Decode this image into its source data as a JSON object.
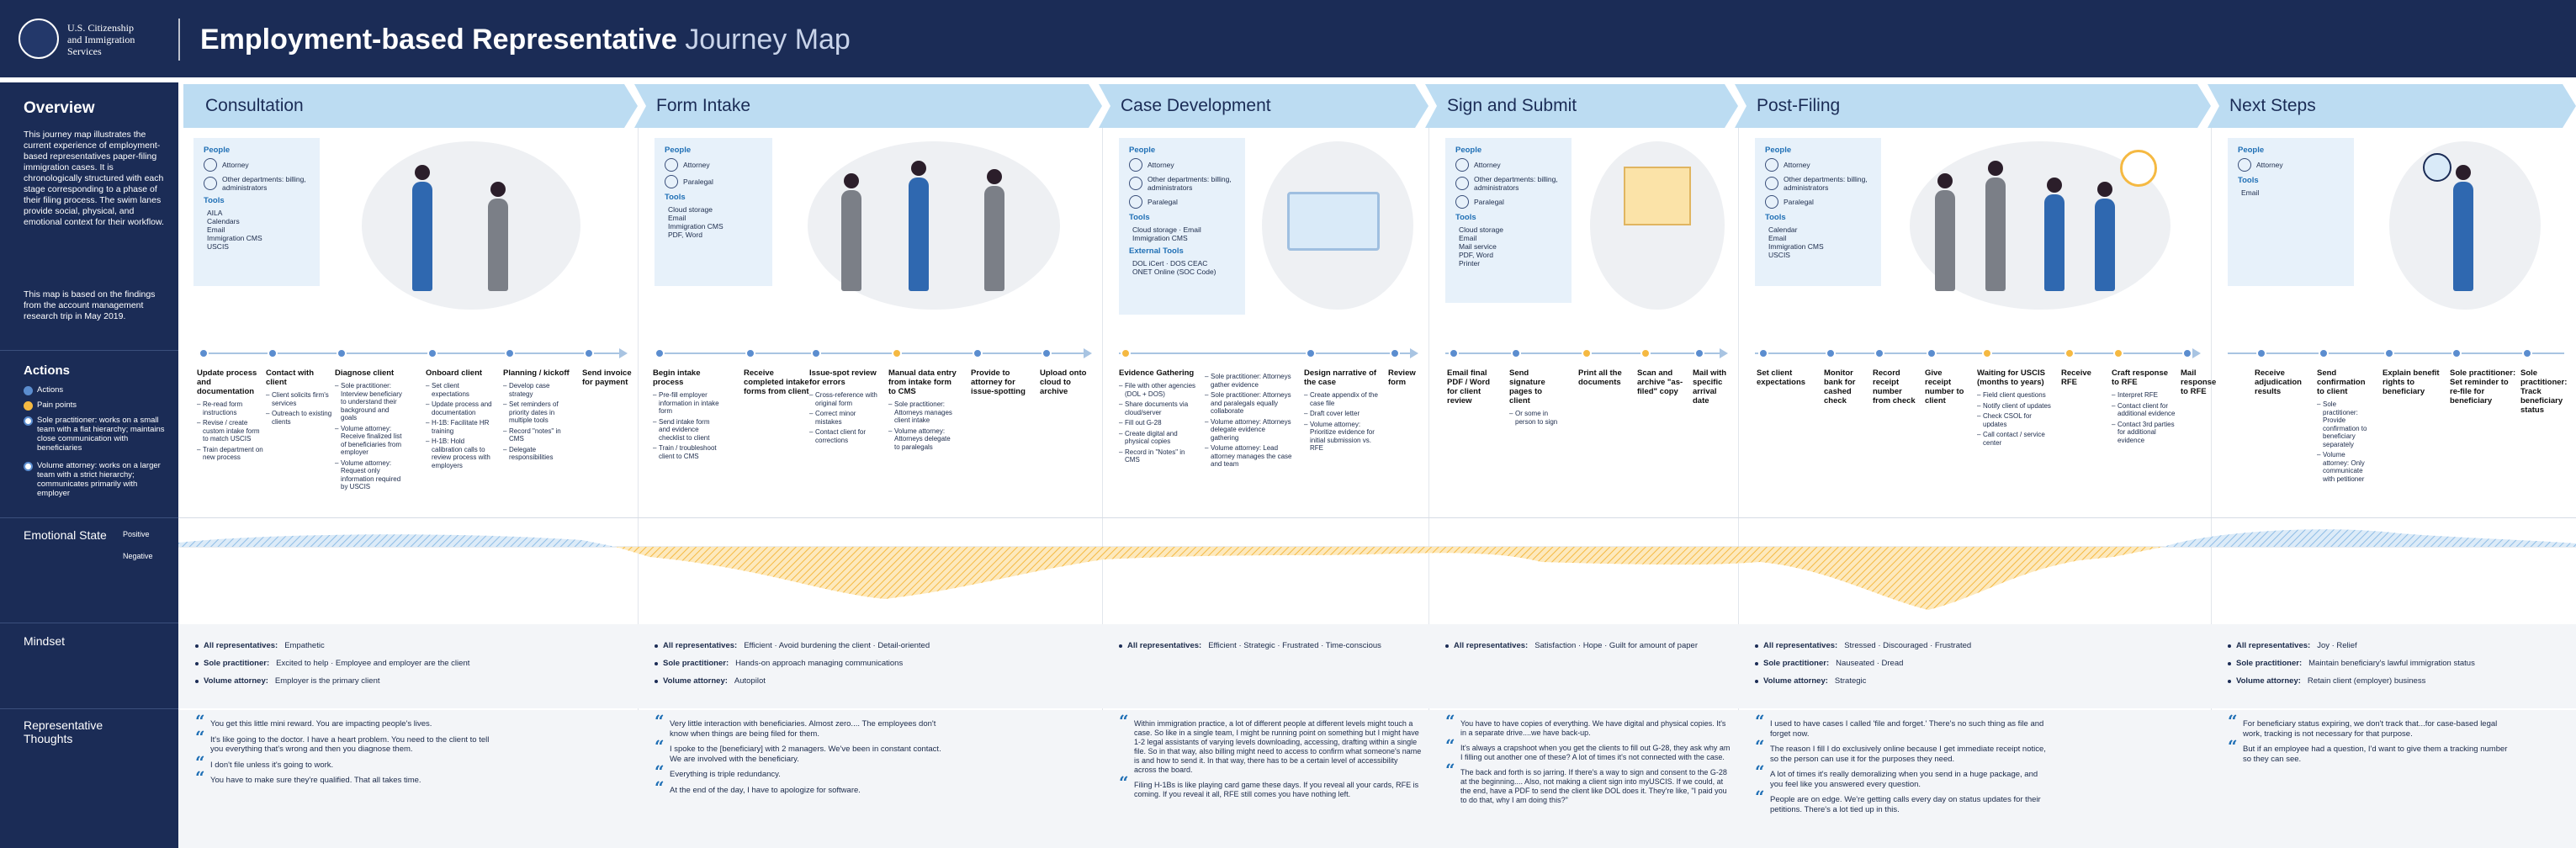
{
  "header": {
    "org_lines": [
      "U.S. Citizenship",
      "and Immigration",
      "Services"
    ],
    "title_bold": "Employment-based Representative",
    "title_light": "Journey Map"
  },
  "overview": {
    "title": "Overview",
    "p1": "This journey map illustrates the current experience of employment-based representatives paper-filing immigration cases. It is chronologically structured with each stage corresponding to a phase of their filing process. The swim lanes provide social, physical, and emotional context for their workflow.",
    "p2": "This map is based on the findings from the account management research trip in May 2019."
  },
  "actions": {
    "title": "Actions",
    "items": [
      {
        "label": "Actions",
        "color": "#5b8dcf"
      },
      {
        "label": "Pain points",
        "color": "#f5b942"
      },
      {
        "label": "Sole practitioner: works on a small team with a flat hierarchy; maintains close communication with beneficiaries",
        "color": "#5b8dcf"
      },
      {
        "label": "Volume attorney: works on a larger team with a strict hierarchy; communicates primarily with employer",
        "color": "#5b8dcf"
      }
    ]
  },
  "lanes": {
    "emotional": "Emotional State",
    "positive": "Positive",
    "negative": "Negative",
    "mindset": "Mindset",
    "thoughts": "Representative Thoughts"
  },
  "colors": {
    "navy": "#1b2c56",
    "phase": "#bcdcf2",
    "positive": "#8fbde6",
    "negative": "#f5b942"
  },
  "phases": [
    {
      "name": "Consultation",
      "people_title": "People",
      "people": [
        "Attorney",
        "Other departments: billing, administrators"
      ],
      "tools_title": "Tools",
      "tools": [
        "AILA",
        "Calendars",
        "Email",
        "Immigration CMS",
        "USCIS"
      ],
      "steps": [
        {
          "title": "Update process and documentation",
          "notes": [
            "Re-read form instructions",
            "Revise / create custom intake form to match USCIS",
            "Train department on new process"
          ],
          "type": "action"
        },
        {
          "title": "Contact with client",
          "notes": [
            "Client solicits firm's services",
            "Outreach to existing clients"
          ],
          "type": "action"
        },
        {
          "title": "Diagnose client",
          "notes": [
            "Sole practitioner: Interview beneficiary to understand their background and goals",
            "Volume attorney: Receive finalized list of beneficiaries from employer",
            "Volume attorney: Request only information required by USCIS"
          ],
          "type": "action"
        },
        {
          "title": "Onboard client",
          "notes": [
            "Set client expectations",
            "Update process and documentation",
            "H-1B: Facilitate HR training",
            "H-1B: Hold calibration calls to review process with employers"
          ],
          "type": "action"
        },
        {
          "title": "Planning / kickoff",
          "notes": [
            "Develop case strategy",
            "Set reminders of priority dates in multiple tools",
            "Record \"notes\" in CMS",
            "Delegate responsibilities"
          ],
          "type": "action"
        },
        {
          "title": "Send invoice for payment",
          "notes": [],
          "type": "action"
        }
      ],
      "mindset": [
        {
          "who": "All representatives:",
          "text": "Empathetic"
        },
        {
          "who": "Sole practitioner:",
          "text": "Excited to help · Employee and employer are the client"
        },
        {
          "who": "Volume attorney:",
          "text": "Employer is the primary client"
        }
      ],
      "thoughts": [
        "You get this little mini reward. You are impacting people's lives.",
        "It's like going to the doctor. I have a heart problem. You need to the client to tell you everything that's wrong and then you diagnose them.",
        "I don't file unless it's going to work.",
        "You have to make sure they're qualified. That all takes time."
      ]
    },
    {
      "name": "Form Intake",
      "people_title": "People",
      "people": [
        "Attorney",
        "Paralegal"
      ],
      "tools_title": "Tools",
      "tools": [
        "Cloud storage",
        "Email",
        "Immigration CMS",
        "PDF, Word"
      ],
      "steps": [
        {
          "title": "Begin intake process",
          "notes": [
            "Pre-fill employer information in intake form",
            "Send intake form and evidence checklist to client",
            "Train / troubleshoot client to CMS"
          ],
          "type": "action"
        },
        {
          "title": "Receive completed intake forms from client",
          "notes": [],
          "type": "action"
        },
        {
          "title": "Issue-spot review for errors",
          "notes": [
            "Cross-reference with original form",
            "Correct minor mistakes",
            "Contact client for corrections"
          ],
          "type": "action"
        },
        {
          "title": "Manual data entry from intake form to CMS",
          "notes": [
            "Sole practitioner: Attorneys manages client intake",
            "Volume attorney: Attorneys delegate to paralegals"
          ],
          "type": "pain"
        },
        {
          "title": "Provide to attorney for issue-spotting",
          "notes": [],
          "type": "action"
        },
        {
          "title": "Upload onto cloud to archive",
          "notes": [],
          "type": "action"
        }
      ],
      "mindset": [
        {
          "who": "All representatives:",
          "text": "Efficient · Avoid burdening the client · Detail-oriented"
        },
        {
          "who": "Sole practitioner:",
          "text": "Hands-on approach managing communications"
        },
        {
          "who": "Volume attorney:",
          "text": "Autopilot"
        }
      ],
      "thoughts": [
        "Very little interaction with beneficiaries. Almost zero.... The employees don't know when things are being filed for them.",
        "I spoke to the [beneficiary] with 2 managers. We've been in constant contact. We are involved with the beneficiary.",
        "Everything is triple redundancy.",
        "At the end of the day, I have to apologize for software."
      ]
    },
    {
      "name": "Case Development",
      "people_title": "People",
      "people": [
        "Attorney",
        "Other departments: billing, administrators",
        "Paralegal"
      ],
      "tools_title": "Tools",
      "tools": [
        "Cloud storage · Email",
        "Immigration CMS"
      ],
      "ext_title": "External Tools",
      "ext_tools": [
        "DOL iCert · DOS CEAC",
        "ONET Online (SOC Code)"
      ],
      "steps": [
        {
          "title": "Evidence Gathering",
          "notes": [
            "File with other agencies (DOL + DOS)",
            "Share documents via cloud/server",
            "Fill out G-28",
            "Create digital and physical copies",
            "Record in \"Notes\" in CMS"
          ],
          "type": "pain"
        },
        {
          "title": "",
          "notes": [
            "Sole practitioner: Attorneys gather evidence",
            "Sole practitioner: Attorneys and paralegals equally collaborate",
            "Volume attorney: Attorneys delegate evidence gathering",
            "Volume attorney: Lead attorney manages the case and team"
          ],
          "type": "action"
        },
        {
          "title": "Design narrative of the case",
          "notes": [
            "Create appendix of the case file",
            "Draft cover letter",
            "Volume attorney: Prioritize evidence for initial submission vs. RFE"
          ],
          "type": "action"
        },
        {
          "title": "Review form",
          "notes": [],
          "type": "action"
        }
      ],
      "mindset": [
        {
          "who": "All representatives:",
          "text": "Efficient · Strategic · Frustrated · Time-conscious"
        }
      ],
      "thoughts": [
        "Within immigration practice, a lot of different people at different levels might touch a case. So like in a single team, I might be running point on something but I might have 1-2 legal assistants of varying levels downloading, accessing, drafting within a single file. So in that way, also billing might need to access to confirm what someone's name is and how to send it. In that way, there has to be a certain level of accessibility across the board.",
        "Filing H-1Bs is like playing card game these days. If you reveal all your cards, RFE is coming. If you reveal it all, RFE still comes you have nothing left."
      ]
    },
    {
      "name": "Sign and Submit",
      "people_title": "People",
      "people": [
        "Attorney",
        "Other departments: billing, administrators",
        "Paralegal"
      ],
      "tools_title": "Tools",
      "tools": [
        "Cloud storage",
        "Email",
        "Mail service",
        "PDF, Word",
        "Printer"
      ],
      "steps": [
        {
          "title": "Email final PDF / Word for client review",
          "notes": [],
          "type": "action"
        },
        {
          "title": "Send signature pages to client",
          "notes": [
            "Or some in person to sign"
          ],
          "type": "action"
        },
        {
          "title": "Print all the documents",
          "notes": [],
          "type": "pain"
        },
        {
          "title": "Scan and archive \"as-filed\" copy",
          "notes": [],
          "type": "pain"
        },
        {
          "title": "Mail with specific arrival date",
          "notes": [],
          "type": "action"
        }
      ],
      "mindset": [
        {
          "who": "All representatives:",
          "text": "Satisfaction · Hope · Guilt for amount of paper"
        }
      ],
      "thoughts": [
        "You have to have copies of everything. We have digital and physical copies. It's in a separate drive....we have back-up.",
        "It's always a crapshoot when you get the clients to fill out G-28, they ask why am I filling out another one of these? A lot of times it's not connected with the case.",
        "The back and forth is so jarring. If there's a way to sign and consent to the G-28 at the beginning.... Also, not making a client sign into myUSCIS. If we could, at the end, have a PDF to send the client like DOL does it. They're like, \"I paid you to do that, why I am doing this?\""
      ]
    },
    {
      "name": "Post-Filing",
      "people_title": "People",
      "people": [
        "Attorney",
        "Other departments: billing, administrators",
        "Paralegal"
      ],
      "tools_title": "Tools",
      "tools": [
        "Calendar",
        "Email",
        "Immigration CMS",
        "USCIS"
      ],
      "steps": [
        {
          "title": "Set client expectations",
          "notes": [],
          "type": "action"
        },
        {
          "title": "Monitor bank for cashed check",
          "notes": [],
          "type": "action"
        },
        {
          "title": "Record receipt number from check",
          "notes": [],
          "type": "action"
        },
        {
          "title": "Give receipt number to client",
          "notes": [],
          "type": "action"
        },
        {
          "title": "Waiting for USCIS (months to years)",
          "notes": [
            "Field client questions",
            "Notify client of updates",
            "Check CSOL for updates",
            "Call contact / service center"
          ],
          "type": "pain"
        },
        {
          "title": "Receive RFE",
          "notes": [],
          "type": "pain"
        },
        {
          "title": "Craft response to RFE",
          "notes": [
            "Interpret RFE",
            "Contact client for additional evidence",
            "Contact 3rd parties for additional evidence"
          ],
          "type": "pain"
        },
        {
          "title": "Mail response to RFE",
          "notes": [],
          "type": "action"
        }
      ],
      "mindset": [
        {
          "who": "All representatives:",
          "text": "Stressed · Discouraged · Frustrated"
        },
        {
          "who": "Sole practitioner:",
          "text": "Nauseated · Dread"
        },
        {
          "who": "Volume attorney:",
          "text": "Strategic"
        }
      ],
      "thoughts": [
        "I used to have cases I called 'file and forget.' There's no such thing as file and forget now.",
        "The reason I fill I do exclusively online because I get immediate receipt notice, so the person can use it for the purposes they need.",
        "A lot of times it's really demoralizing when you send in a huge package, and you feel like you answered every question.",
        "People are on edge. We're getting calls every day on status updates for their petitions. There's a lot tied up in this."
      ]
    },
    {
      "name": "Next Steps",
      "people_title": "People",
      "people": [
        "Attorney"
      ],
      "tools_title": "Tools",
      "tools": [
        "Email"
      ],
      "steps": [
        {
          "title": "Receive adjudication results",
          "notes": [],
          "type": "action"
        },
        {
          "title": "Send confirmation to client",
          "notes": [
            "Sole practitioner: Provide confirmation to beneficiary separately",
            "Volume attorney: Only communicate with petitioner"
          ],
          "type": "action"
        },
        {
          "title": "Explain benefit rights to beneficiary",
          "notes": [],
          "type": "action"
        },
        {
          "title": "Sole practitioner: Set reminder to re-file for beneficiary",
          "notes": [],
          "type": "action"
        },
        {
          "title": "Sole practitioner: Track beneficiary status",
          "notes": [],
          "type": "action"
        }
      ],
      "mindset": [
        {
          "who": "All representatives:",
          "text": "Joy · Relief"
        },
        {
          "who": "Sole practitioner:",
          "text": "Maintain beneficiary's lawful immigration status"
        },
        {
          "who": "Volume attorney:",
          "text": "Retain client (employer) business"
        }
      ],
      "thoughts": [
        "For beneficiary status expiring, we don't track that...for case-based legal work, tracking is not necessary for that purpose.",
        "But if an employee had a question, I'd want to give them a tracking number so they can see."
      ]
    }
  ]
}
